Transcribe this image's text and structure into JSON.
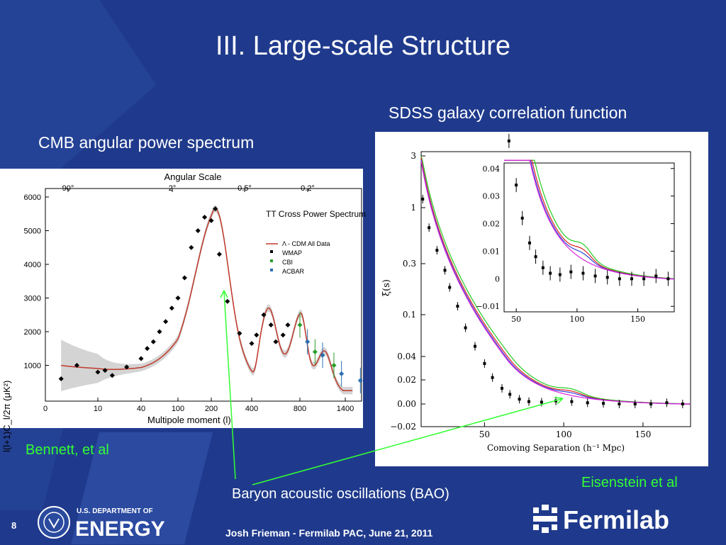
{
  "slide": {
    "title": "III. Large-scale Structure",
    "cmb_heading": "CMB angular power spectrum",
    "sdss_heading": "SDSS galaxy correlation function",
    "bennett": "Bennett, et al",
    "eisenstein": "Eisenstein et al",
    "bao": "Baryon acoustic oscillations (BAO)",
    "footer": "Josh Frieman  -  Fermilab PAC, June 21, 2011",
    "page_number": "8",
    "doe_line1": "U.S. DEPARTMENT OF",
    "doe_line2": "ENERGY",
    "fermilab": "Fermilab"
  },
  "colors": {
    "background": "#1f3a8c",
    "accent_green": "#33ff33",
    "model_red": "#c0392b",
    "band_gray": "#cccccc"
  },
  "chart_data": [
    {
      "type": "scatter",
      "title": "Angular Scale",
      "top_ticks": [
        "90°",
        "2°",
        "0.5°",
        "0.2°"
      ],
      "xlabel": "Multipole moment (l)",
      "ylabel": "l(l+1)C_l/2π (μK²)",
      "x_ticks": [
        "0",
        "10",
        "40",
        "100",
        "200",
        "400",
        "800",
        "1400"
      ],
      "y_ticks": [
        "1000",
        "2000",
        "3000",
        "4000",
        "5000",
        "6000"
      ],
      "ylim": [
        0,
        6000
      ],
      "legend_title": "TT Cross Power Spectrum",
      "legend": [
        "Λ - CDM All Data",
        "WMAP",
        "CBI",
        "ACBAR"
      ],
      "legend_position": "top-right",
      "series": [
        {
          "name": "WMAP",
          "x": [
            3,
            6,
            10,
            15,
            20,
            30,
            40,
            50,
            60,
            70,
            80,
            90,
            100,
            120,
            140,
            160,
            180,
            200,
            220,
            240,
            280,
            340,
            400,
            440,
            500,
            560,
            600,
            660,
            700
          ],
          "y": [
            600,
            1000,
            800,
            850,
            700,
            950,
            1200,
            1500,
            1700,
            2000,
            2300,
            2700,
            3000,
            3600,
            4500,
            5000,
            5400,
            5300,
            5650,
            4300,
            2900,
            1950,
            1650,
            1900,
            2500,
            2200,
            1700,
            1900,
            2200
          ]
        },
        {
          "name": "CBI",
          "x": [
            800,
            1000,
            1250
          ],
          "y": [
            2200,
            1400,
            1000
          ]
        },
        {
          "name": "ACBAR",
          "x": [
            900,
            1100,
            1350,
            1600
          ],
          "y": [
            1700,
            1300,
            750,
            550
          ]
        }
      ]
    },
    {
      "type": "line",
      "xlabel": "Comoving Separation (h⁻¹ Mpc)",
      "ylabel": "ξ(s)",
      "x_ticks": [
        "50",
        "100",
        "150"
      ],
      "y_ticks": [
        "−0.02",
        "0.00",
        "0.02",
        "0.04",
        "0.1",
        "0.3",
        "1",
        "3"
      ],
      "xlim": [
        10,
        180
      ],
      "series": [
        {
          "name": "",
          "color": "#000000",
          "x": [
            11,
            15,
            20,
            25,
            28,
            33,
            38,
            44,
            50,
            55,
            61,
            66,
            72,
            78,
            86,
            95,
            105,
            115,
            125,
            135,
            145,
            155,
            165,
            175
          ],
          "y": [
            1.2,
            0.65,
            0.4,
            0.26,
            0.18,
            0.12,
            0.075,
            0.05,
            0.034,
            0.022,
            0.013,
            0.008,
            0.004,
            0.002,
            0.0015,
            0.0025,
            0.002,
            0.001,
            0.0005,
            0.0,
            0.0,
            0.0,
            0.001,
            0.0
          ]
        }
      ],
      "inset": {
        "x_ticks": [
          "50",
          "100",
          "150"
        ],
        "y_ticks": [
          "0.04",
          "0.03",
          "0.02",
          "0.01",
          "0",
          "−0.01"
        ],
        "ylim": [
          -0.01,
          0.04
        ]
      }
    }
  ]
}
